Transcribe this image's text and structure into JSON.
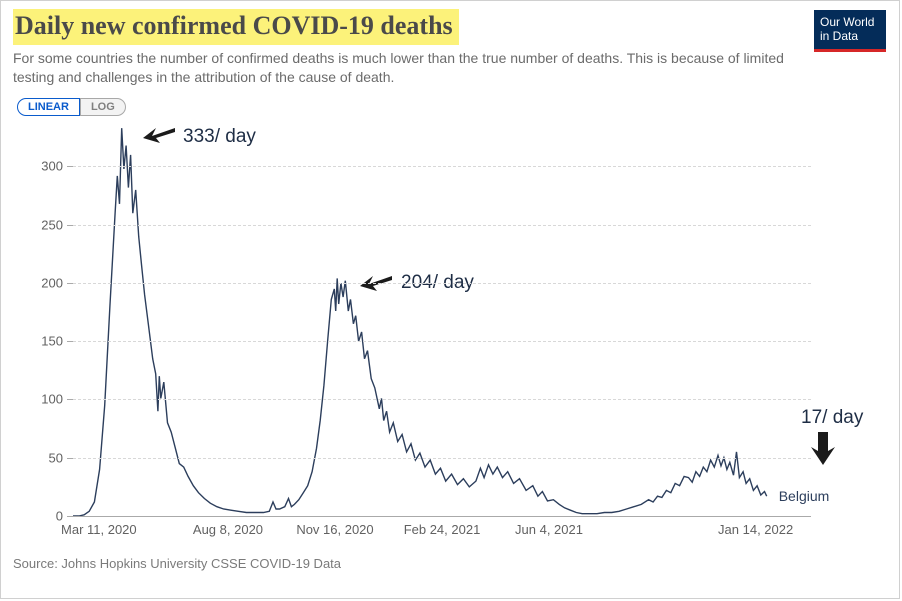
{
  "title": "Daily new confirmed COVID-19 deaths",
  "subtitle": "For some countries the number of confirmed deaths is much lower than the true number of deaths. This is because of limited testing and challenges in the attribution of the cause of death.",
  "badge_l1": "Our World",
  "badge_l2": "in Data",
  "toggle": {
    "linear": "LINEAR",
    "log": "LOG"
  },
  "source": "Source: Johns Hopkins University CSSE COVID-19 Data",
  "legend": "Belgium",
  "chart": {
    "type": "line",
    "ylim": [
      0,
      340
    ],
    "yticks": [
      0,
      50,
      100,
      150,
      200,
      250,
      300
    ],
    "xlim": [
      0,
      100
    ],
    "xticks": [
      {
        "pos": 3.5,
        "label": "Mar 11, 2020"
      },
      {
        "pos": 21.0,
        "label": "Aug 8, 2020"
      },
      {
        "pos": 35.5,
        "label": "Nov 16, 2020"
      },
      {
        "pos": 50.0,
        "label": "Feb 24, 2021"
      },
      {
        "pos": 64.5,
        "label": "Jun 4, 2021"
      },
      {
        "pos": 92.5,
        "label": "Jan 14, 2022"
      }
    ],
    "series": [
      [
        0,
        0
      ],
      [
        0.8,
        0
      ],
      [
        1.5,
        1
      ],
      [
        2.2,
        4
      ],
      [
        2.9,
        12
      ],
      [
        3.6,
        40
      ],
      [
        4.3,
        95
      ],
      [
        5.0,
        180
      ],
      [
        5.7,
        260
      ],
      [
        6.0,
        292
      ],
      [
        6.3,
        268
      ],
      [
        6.6,
        333
      ],
      [
        6.9,
        298
      ],
      [
        7.2,
        318
      ],
      [
        7.5,
        282
      ],
      [
        7.8,
        310
      ],
      [
        8.1,
        260
      ],
      [
        8.5,
        280
      ],
      [
        8.9,
        240
      ],
      [
        9.3,
        215
      ],
      [
        9.7,
        190
      ],
      [
        10.2,
        165
      ],
      [
        10.8,
        135
      ],
      [
        11.2,
        122
      ],
      [
        11.5,
        90
      ],
      [
        11.7,
        120
      ],
      [
        11.9,
        101
      ],
      [
        12.3,
        115
      ],
      [
        12.8,
        80
      ],
      [
        13.3,
        72
      ],
      [
        13.8,
        60
      ],
      [
        14.4,
        45
      ],
      [
        15.0,
        42
      ],
      [
        15.6,
        34
      ],
      [
        16.3,
        26
      ],
      [
        17.0,
        20
      ],
      [
        17.8,
        15
      ],
      [
        18.6,
        11
      ],
      [
        19.5,
        8
      ],
      [
        20.4,
        6
      ],
      [
        21.4,
        5
      ],
      [
        22.4,
        4
      ],
      [
        23.5,
        3
      ],
      [
        24.6,
        3
      ],
      [
        25.8,
        3
      ],
      [
        26.6,
        4
      ],
      [
        27.1,
        12
      ],
      [
        27.5,
        6
      ],
      [
        28.0,
        6
      ],
      [
        28.7,
        8
      ],
      [
        29.2,
        15
      ],
      [
        29.6,
        8
      ],
      [
        30.0,
        10
      ],
      [
        30.6,
        14
      ],
      [
        31.2,
        20
      ],
      [
        31.8,
        26
      ],
      [
        32.4,
        38
      ],
      [
        33.0,
        58
      ],
      [
        33.5,
        82
      ],
      [
        34.0,
        112
      ],
      [
        34.5,
        150
      ],
      [
        35.0,
        186
      ],
      [
        35.4,
        195
      ],
      [
        35.6,
        176
      ],
      [
        35.8,
        204
      ],
      [
        36.0,
        182
      ],
      [
        36.3,
        200
      ],
      [
        36.6,
        188
      ],
      [
        36.9,
        202
      ],
      [
        37.3,
        176
      ],
      [
        37.6,
        186
      ],
      [
        38.0,
        165
      ],
      [
        38.3,
        172
      ],
      [
        38.7,
        150
      ],
      [
        39.1,
        158
      ],
      [
        39.5,
        135
      ],
      [
        39.9,
        142
      ],
      [
        40.4,
        118
      ],
      [
        40.9,
        110
      ],
      [
        41.5,
        92
      ],
      [
        41.8,
        101
      ],
      [
        42.1,
        82
      ],
      [
        42.5,
        90
      ],
      [
        42.9,
        72
      ],
      [
        43.4,
        80
      ],
      [
        44.0,
        64
      ],
      [
        44.6,
        70
      ],
      [
        45.2,
        55
      ],
      [
        45.8,
        62
      ],
      [
        46.4,
        48
      ],
      [
        47.0,
        54
      ],
      [
        47.7,
        42
      ],
      [
        48.4,
        48
      ],
      [
        49.1,
        36
      ],
      [
        49.8,
        41
      ],
      [
        50.5,
        30
      ],
      [
        51.3,
        36
      ],
      [
        52.1,
        27
      ],
      [
        52.9,
        32
      ],
      [
        53.7,
        25
      ],
      [
        54.6,
        30
      ],
      [
        55.2,
        41
      ],
      [
        55.7,
        33
      ],
      [
        56.3,
        44
      ],
      [
        56.9,
        36
      ],
      [
        57.5,
        42
      ],
      [
        58.2,
        33
      ],
      [
        58.9,
        38
      ],
      [
        59.7,
        28
      ],
      [
        60.5,
        32
      ],
      [
        61.4,
        22
      ],
      [
        62.3,
        26
      ],
      [
        63.0,
        17
      ],
      [
        63.6,
        21
      ],
      [
        64.3,
        13
      ],
      [
        65.1,
        14
      ],
      [
        65.9,
        10
      ],
      [
        66.6,
        7
      ],
      [
        67.4,
        5
      ],
      [
        68.2,
        3
      ],
      [
        69.0,
        2
      ],
      [
        70.0,
        2
      ],
      [
        71.0,
        2
      ],
      [
        72.0,
        3
      ],
      [
        73.0,
        3
      ],
      [
        74.0,
        4
      ],
      [
        75.0,
        6
      ],
      [
        76.0,
        8
      ],
      [
        77.0,
        10
      ],
      [
        78.0,
        14
      ],
      [
        78.6,
        12
      ],
      [
        79.2,
        17
      ],
      [
        79.8,
        16
      ],
      [
        80.4,
        22
      ],
      [
        81.0,
        20
      ],
      [
        81.6,
        28
      ],
      [
        82.2,
        26
      ],
      [
        82.8,
        34
      ],
      [
        83.4,
        33
      ],
      [
        83.9,
        29
      ],
      [
        84.4,
        38
      ],
      [
        84.9,
        34
      ],
      [
        85.4,
        42
      ],
      [
        85.9,
        38
      ],
      [
        86.4,
        48
      ],
      [
        86.9,
        42
      ],
      [
        87.4,
        52
      ],
      [
        87.8,
        43
      ],
      [
        88.2,
        50
      ],
      [
        88.6,
        40
      ],
      [
        89.0,
        46
      ],
      [
        89.5,
        35
      ],
      [
        89.9,
        55
      ],
      [
        90.3,
        33
      ],
      [
        90.8,
        38
      ],
      [
        91.2,
        28
      ],
      [
        91.7,
        32
      ],
      [
        92.2,
        22
      ],
      [
        92.7,
        26
      ],
      [
        93.2,
        18
      ],
      [
        93.7,
        21
      ],
      [
        94.0,
        17
      ]
    ],
    "line_color": "#2c3e5c",
    "grid_color": "#d8d8d8",
    "text_color": "#616161",
    "background_color": "#ffffff"
  },
  "annotations": {
    "a1": "333/ day",
    "a2": "204/ day",
    "a3": "17/ day"
  }
}
